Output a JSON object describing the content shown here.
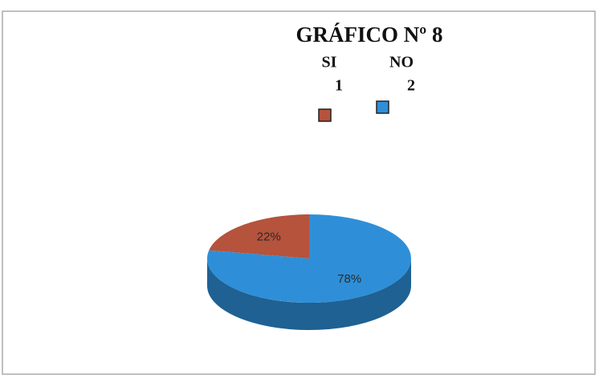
{
  "chart_data": {
    "type": "pie",
    "title": "GRÁFICO Nº 8",
    "categories": [
      "SI",
      "NO"
    ],
    "legend_codes": [
      "1",
      "2"
    ],
    "values": [
      22,
      78
    ],
    "value_labels": [
      "22%",
      "78%"
    ],
    "colors": [
      "#b5533c",
      "#2e8fd8"
    ]
  }
}
